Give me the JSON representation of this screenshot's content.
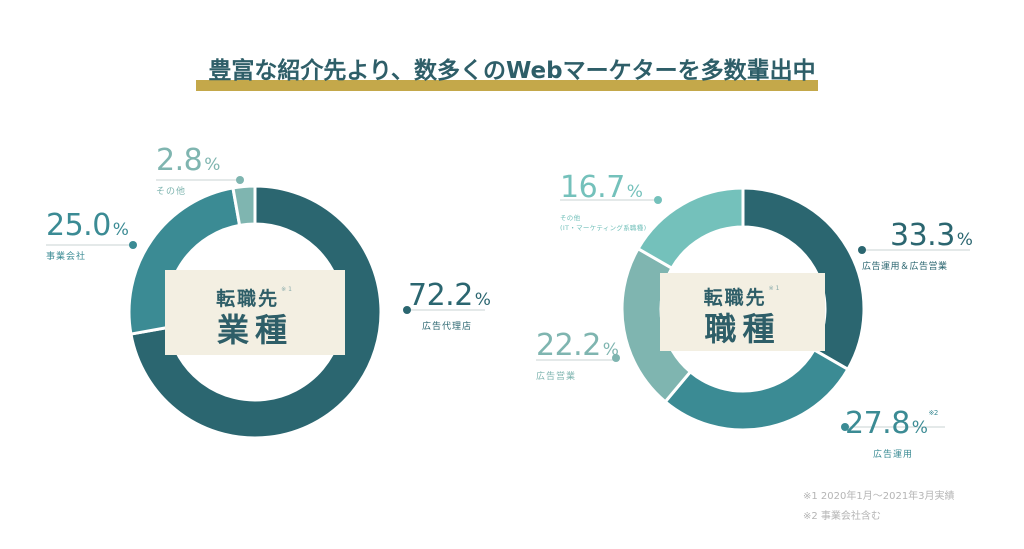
{
  "header": {
    "title": "豊富な紹介先より、数多くのWebマーケターを多数輩出中"
  },
  "colors": {
    "dark": "#2b6670",
    "mid": "#3b8b94",
    "gray_teal": "#7fb5b0",
    "light": "#74c1bb",
    "accent_bar": "#c4a84a",
    "center_bg": "#f3efe2",
    "title_text": "#2e5e68"
  },
  "left_chart": {
    "center_line1": "転職先",
    "center_sup": "※1",
    "center_line2": "業種",
    "items": [
      {
        "value": "72.2",
        "unit": "%",
        "label": "広告代理店"
      },
      {
        "value": "25.0",
        "unit": "%",
        "label": "事業会社"
      },
      {
        "value": "2.8",
        "unit": "%",
        "label": "その他"
      }
    ]
  },
  "right_chart": {
    "center_line1": "転職先",
    "center_sup": "※1",
    "center_line2": "職種",
    "items": [
      {
        "value": "33.3",
        "unit": "%",
        "label": "広告運用＆広告営業"
      },
      {
        "value": "27.8",
        "unit": "%",
        "sup": "※2",
        "label": "広告運用"
      },
      {
        "value": "22.2",
        "unit": "%",
        "label": "広告営業"
      },
      {
        "value": "16.7",
        "unit": "%",
        "label": "その他",
        "sublabel": "(IT・マーケティング系職種)"
      }
    ]
  },
  "footnotes": {
    "note1": "※1 2020年1月〜2021年3月実績",
    "note2": "※2 事業会社含む"
  },
  "chart_data": [
    {
      "type": "pie",
      "title": "転職先 業種",
      "categories": [
        "広告代理店",
        "事業会社",
        "その他"
      ],
      "values": [
        72.2,
        25.0,
        2.8
      ],
      "colors": [
        "#2b6670",
        "#3b8b94",
        "#7fb5b0"
      ],
      "donut": true
    },
    {
      "type": "pie",
      "title": "転職先 職種",
      "categories": [
        "広告運用＆広告営業",
        "広告運用",
        "広告営業",
        "その他(IT・マーケティング系職種)"
      ],
      "values": [
        33.3,
        27.8,
        22.2,
        16.7
      ],
      "colors": [
        "#2b6670",
        "#3b8b94",
        "#7fb5b0",
        "#74c1bb"
      ],
      "donut": true
    }
  ]
}
